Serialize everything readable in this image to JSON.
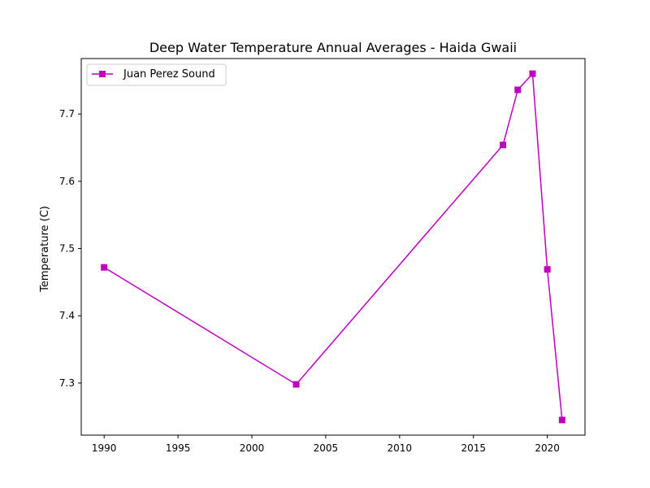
{
  "chart_data": {
    "type": "line",
    "title": "Deep Water Temperature Annual Averages - Haida Gwaii",
    "xlabel": "",
    "ylabel": "Temperature (C)",
    "xlim": [
      1988.45,
      2022.55
    ],
    "ylim": [
      7.2225,
      7.7825
    ],
    "x_ticks": [
      1990,
      1995,
      2000,
      2005,
      2010,
      2015,
      2020
    ],
    "y_ticks": [
      7.3,
      7.4,
      7.5,
      7.6,
      7.7
    ],
    "y_tick_labels": [
      "7.3",
      "7.4",
      "7.5",
      "7.6",
      "7.7"
    ],
    "grid": false,
    "legend_position": "upper-left",
    "series": [
      {
        "name": "Juan Perez Sound",
        "color": "#bf00bf",
        "marker": "square",
        "x": [
          1990,
          2003,
          2017,
          2018,
          2019,
          2020,
          2021
        ],
        "y": [
          7.472,
          7.298,
          7.654,
          7.736,
          7.76,
          7.469,
          7.245
        ]
      }
    ]
  }
}
